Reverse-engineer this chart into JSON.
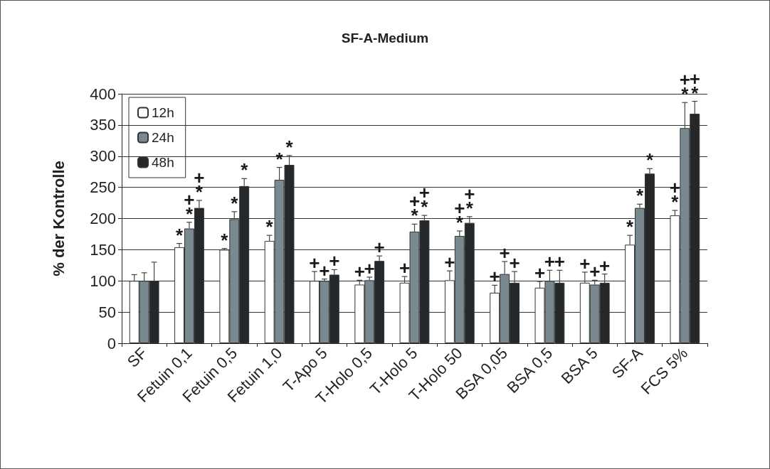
{
  "chart_data": {
    "type": "bar",
    "title": "SF-A-Medium",
    "ylabel": "% der Kontrolle",
    "categories": [
      "SF",
      "Fetuin 0,1",
      "Fetuin 0,5",
      "Fetuin 1,0",
      "T-Apo 5",
      "T-Holo 0,5",
      "T-Holo 5",
      "T-Holo 50",
      "BSA 0,05",
      "BSA 0,5",
      "BSA 5",
      "SF-A",
      "FCS 5%"
    ],
    "series": [
      {
        "name": "12h",
        "color": "#ffffff",
        "values": [
          100,
          154,
          150,
          164,
          100,
          94,
          97,
          101,
          81,
          89,
          97,
          158,
          205
        ],
        "errors": [
          10,
          6,
          2,
          9,
          15,
          7,
          10,
          15,
          12,
          10,
          17,
          15,
          8
        ],
        "value_labels": [
          null,
          "*",
          "*",
          "*",
          "+",
          "+",
          "+",
          "+",
          "+",
          "+",
          "+",
          "*",
          "+\n*"
        ]
      },
      {
        "name": "24h",
        "color": "#7a888f",
        "values": [
          100,
          184,
          199,
          262,
          100,
          101,
          179,
          172,
          111,
          100,
          94,
          217,
          345
        ],
        "errors": [
          13,
          10,
          12,
          20,
          3,
          5,
          12,
          8,
          20,
          17,
          7,
          6,
          41
        ],
        "value_labels": [
          null,
          "+\n*",
          "*",
          "*",
          "+",
          "+",
          "+\n*",
          "+\n*",
          "+",
          "+",
          "+",
          "*",
          "+\n*"
        ]
      },
      {
        "name": "48h",
        "color": "#24282b",
        "values": [
          100,
          217,
          252,
          286,
          110,
          132,
          197,
          193,
          97,
          97,
          97,
          272,
          368
        ],
        "errors": [
          30,
          12,
          12,
          15,
          8,
          8,
          8,
          10,
          18,
          20,
          14,
          8,
          20
        ],
        "value_labels": [
          null,
          "+\n*",
          "*",
          "*",
          "+",
          "+",
          "+\n*",
          "+\n*",
          "+",
          "+",
          "+",
          "*",
          "+\n*"
        ]
      }
    ],
    "ylim": [
      0,
      400
    ],
    "yticks": [
      0,
      50,
      100,
      150,
      200,
      250,
      300,
      350,
      400
    ],
    "grid": "y",
    "legend": "top left"
  }
}
